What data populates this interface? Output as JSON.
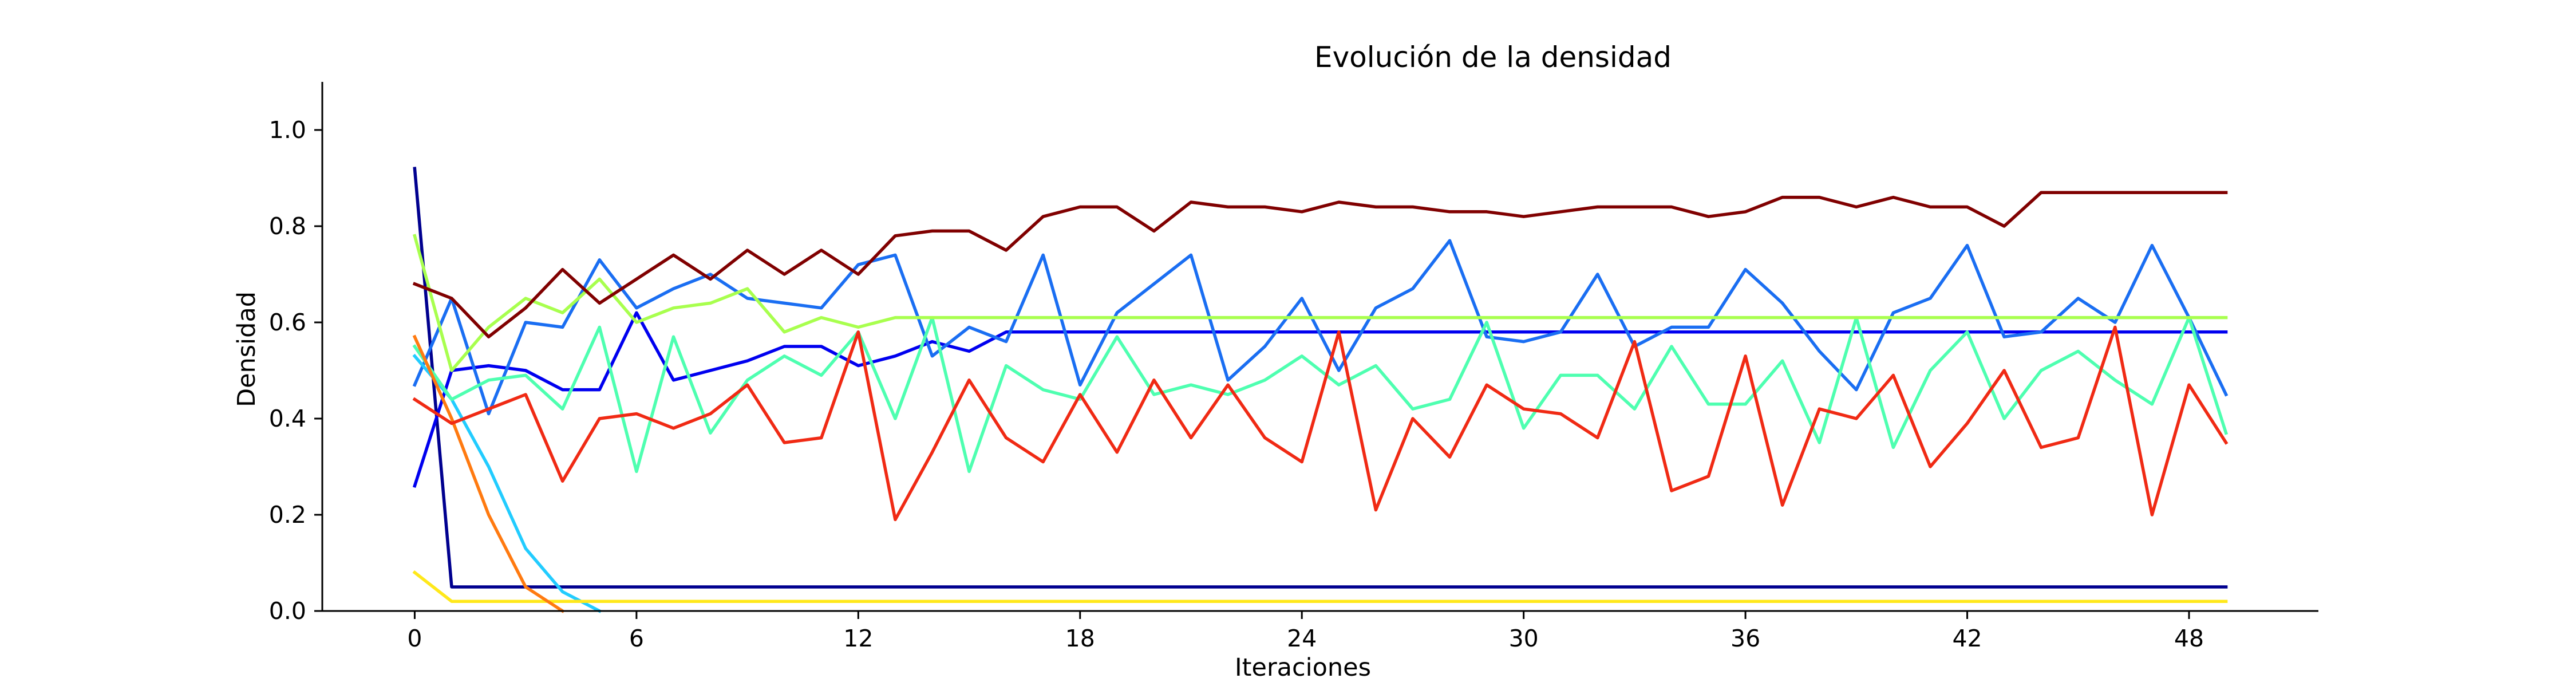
{
  "chart_data": {
    "type": "line",
    "title": "Evolución de la densidad",
    "xlabel": "Iteraciones",
    "ylabel": "Densidad",
    "xlim": [
      -2.5,
      51.5
    ],
    "ylim": [
      0.0,
      1.1
    ],
    "xticks": [
      "0",
      "6",
      "12",
      "18",
      "24",
      "30",
      "36",
      "42",
      "48"
    ],
    "yticks": [
      "0.0",
      "0.2",
      "0.4",
      "0.6",
      "0.8",
      "1.0"
    ],
    "grid": false,
    "legend": "none",
    "x": [
      0,
      1,
      2,
      3,
      4,
      5,
      6,
      7,
      8,
      9,
      10,
      11,
      12,
      13,
      14,
      15,
      16,
      17,
      18,
      19,
      20,
      21,
      22,
      23,
      24,
      25,
      26,
      27,
      28,
      29,
      30,
      31,
      32,
      33,
      34,
      35,
      36,
      37,
      38,
      39,
      40,
      41,
      42,
      43,
      44,
      45,
      46,
      47,
      48,
      49
    ],
    "series": [
      {
        "color": "#00008f",
        "values": [
          0.92,
          0.05,
          0.05,
          0.05,
          0.05,
          0.05,
          0.05,
          0.05,
          0.05,
          0.05,
          0.05,
          0.05,
          0.05,
          0.05,
          0.05,
          0.05,
          0.05,
          0.05,
          0.05,
          0.05,
          0.05,
          0.05,
          0.05,
          0.05,
          0.05,
          0.05,
          0.05,
          0.05,
          0.05,
          0.05,
          0.05,
          0.05,
          0.05,
          0.05,
          0.05,
          0.05,
          0.05,
          0.05,
          0.05,
          0.05,
          0.05,
          0.05,
          0.05,
          0.05,
          0.05,
          0.05,
          0.05,
          0.05,
          0.05,
          0.05
        ]
      },
      {
        "color": "#0000ef",
        "values": [
          0.26,
          0.5,
          0.51,
          0.5,
          0.46,
          0.46,
          0.62,
          0.48,
          0.5,
          0.52,
          0.55,
          0.55,
          0.51,
          0.53,
          0.56,
          0.54,
          0.58,
          0.58,
          0.58,
          0.58,
          0.58,
          0.58,
          0.58,
          0.58,
          0.58,
          0.58,
          0.58,
          0.58,
          0.58,
          0.58,
          0.58,
          0.58,
          0.58,
          0.58,
          0.58,
          0.58,
          0.58,
          0.58,
          0.58,
          0.58,
          0.58,
          0.58,
          0.58,
          0.58,
          0.58,
          0.58,
          0.58,
          0.58,
          0.58,
          0.58
        ]
      },
      {
        "color": "#1a6ef2",
        "values": [
          0.47,
          0.65,
          0.41,
          0.6,
          0.59,
          0.73,
          0.63,
          0.67,
          0.7,
          0.65,
          0.64,
          0.63,
          0.72,
          0.74,
          0.53,
          0.59,
          0.56,
          0.74,
          0.47,
          0.62,
          0.68,
          0.74,
          0.48,
          0.55,
          0.65,
          0.5,
          0.63,
          0.67,
          0.77,
          0.57,
          0.56,
          0.58,
          0.7,
          0.55,
          0.59,
          0.59,
          0.71,
          0.64,
          0.54,
          0.46,
          0.62,
          0.65,
          0.76,
          0.57,
          0.58,
          0.65,
          0.6,
          0.76,
          0.61,
          0.45
        ]
      },
      {
        "color": "#22ccff",
        "values": [
          0.53,
          0.44,
          0.3,
          0.13,
          0.04,
          0.0,
          null,
          null,
          null,
          null,
          null,
          null,
          null,
          null,
          null,
          null,
          null,
          null,
          null,
          null,
          null,
          null,
          null,
          null,
          null,
          null,
          null,
          null,
          null,
          null,
          null,
          null,
          null,
          null,
          null,
          null,
          null,
          null,
          null,
          null,
          null,
          null,
          null,
          null,
          null,
          null,
          null,
          null,
          null,
          null
        ]
      },
      {
        "color": "#4effb0",
        "values": [
          0.55,
          0.44,
          0.48,
          0.49,
          0.42,
          0.59,
          0.29,
          0.57,
          0.37,
          0.48,
          0.53,
          0.49,
          0.58,
          0.4,
          0.61,
          0.29,
          0.51,
          0.46,
          0.44,
          0.57,
          0.45,
          0.47,
          0.45,
          0.48,
          0.53,
          0.47,
          0.51,
          0.42,
          0.44,
          0.6,
          0.38,
          0.49,
          0.49,
          0.42,
          0.55,
          0.43,
          0.43,
          0.52,
          0.35,
          0.61,
          0.34,
          0.5,
          0.58,
          0.4,
          0.5,
          0.54,
          0.48,
          0.43,
          0.61,
          0.37
        ]
      },
      {
        "color": "#a8ff4e",
        "values": [
          0.78,
          0.5,
          0.59,
          0.65,
          0.62,
          0.69,
          0.6,
          0.63,
          0.64,
          0.67,
          0.58,
          0.61,
          0.59,
          0.61,
          0.61,
          0.61,
          0.61,
          0.61,
          0.61,
          0.61,
          0.61,
          0.61,
          0.61,
          0.61,
          0.61,
          0.61,
          0.61,
          0.61,
          0.61,
          0.61,
          0.61,
          0.61,
          0.61,
          0.61,
          0.61,
          0.61,
          0.61,
          0.61,
          0.61,
          0.61,
          0.61,
          0.61,
          0.61,
          0.61,
          0.61,
          0.61,
          0.61,
          0.61,
          0.61,
          0.61
        ]
      },
      {
        "color": "#ffe81a",
        "values": [
          0.08,
          0.02,
          0.02,
          0.02,
          0.02,
          0.02,
          0.02,
          0.02,
          0.02,
          0.02,
          0.02,
          0.02,
          0.02,
          0.02,
          0.02,
          0.02,
          0.02,
          0.02,
          0.02,
          0.02,
          0.02,
          0.02,
          0.02,
          0.02,
          0.02,
          0.02,
          0.02,
          0.02,
          0.02,
          0.02,
          0.02,
          0.02,
          0.02,
          0.02,
          0.02,
          0.02,
          0.02,
          0.02,
          0.02,
          0.02,
          0.02,
          0.02,
          0.02,
          0.02,
          0.02,
          0.02,
          0.02,
          0.02,
          0.02,
          0.02
        ]
      },
      {
        "color": "#ff7a10",
        "values": [
          0.57,
          0.4,
          0.2,
          0.05,
          0.0,
          null,
          null,
          null,
          null,
          null,
          null,
          null,
          null,
          null,
          null,
          null,
          null,
          null,
          null,
          null,
          null,
          null,
          null,
          null,
          null,
          null,
          null,
          null,
          null,
          null,
          null,
          null,
          null,
          null,
          null,
          null,
          null,
          null,
          null,
          null,
          null,
          null,
          null,
          null,
          null,
          null,
          null,
          null,
          null,
          null
        ]
      },
      {
        "color": "#f02a14",
        "values": [
          0.44,
          0.39,
          0.42,
          0.45,
          0.27,
          0.4,
          0.41,
          0.38,
          0.41,
          0.47,
          0.35,
          0.36,
          0.58,
          0.19,
          0.33,
          0.48,
          0.36,
          0.31,
          0.45,
          0.33,
          0.48,
          0.36,
          0.47,
          0.36,
          0.31,
          0.58,
          0.21,
          0.4,
          0.32,
          0.47,
          0.42,
          0.41,
          0.36,
          0.56,
          0.25,
          0.28,
          0.53,
          0.22,
          0.42,
          0.4,
          0.49,
          0.3,
          0.39,
          0.5,
          0.34,
          0.36,
          0.59,
          0.2,
          0.47,
          0.35
        ]
      },
      {
        "color": "#800000",
        "values": [
          0.68,
          0.65,
          0.57,
          0.63,
          0.71,
          0.64,
          0.69,
          0.74,
          0.69,
          0.75,
          0.7,
          0.75,
          0.7,
          0.78,
          0.79,
          0.79,
          0.75,
          0.82,
          0.84,
          0.84,
          0.79,
          0.85,
          0.84,
          0.84,
          0.83,
          0.85,
          0.84,
          0.84,
          0.83,
          0.83,
          0.82,
          0.83,
          0.84,
          0.84,
          0.84,
          0.82,
          0.83,
          0.86,
          0.86,
          0.84,
          0.86,
          0.84,
          0.84,
          0.8,
          0.87,
          0.87,
          0.87,
          0.87,
          0.87,
          0.87
        ]
      }
    ]
  }
}
